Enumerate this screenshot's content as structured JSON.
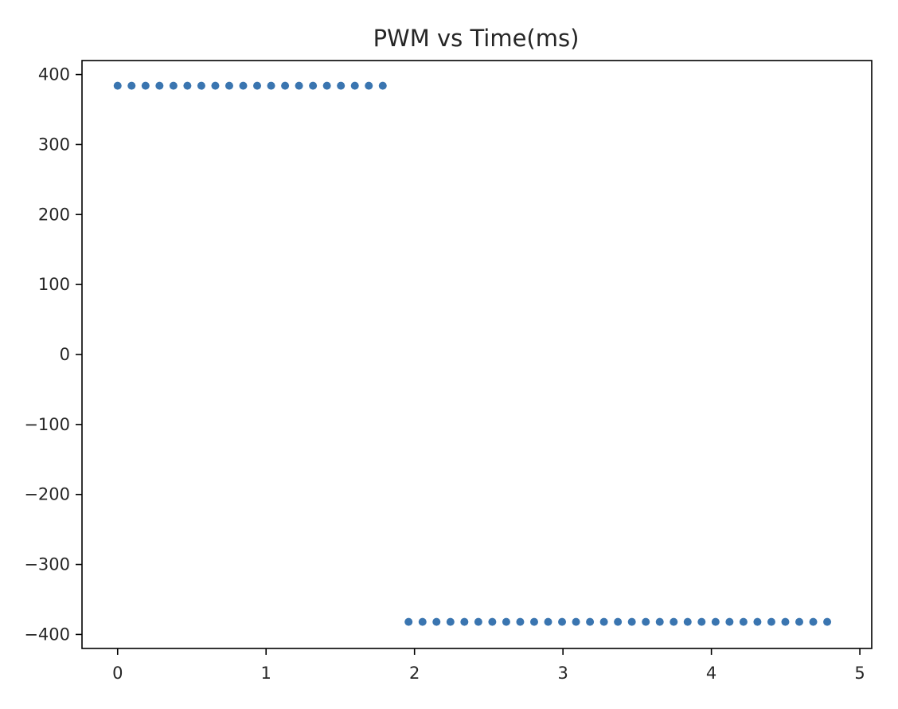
{
  "chart_data": {
    "type": "scatter",
    "title": "PWM vs Time(ms)",
    "xlabel": "",
    "ylabel": "",
    "xlim": [
      -0.24,
      5.08
    ],
    "ylim": [
      -420,
      420
    ],
    "x_ticks": [
      0,
      1,
      2,
      3,
      4,
      5
    ],
    "y_ticks": [
      400,
      300,
      200,
      100,
      0,
      -100,
      -200,
      -300,
      -400
    ],
    "y_tick_labels": [
      "400",
      "300",
      "200",
      "100",
      "0",
      "−100",
      "−200",
      "−300",
      "−400"
    ],
    "grid": false,
    "marker_color": "#3a75b0",
    "series": [
      {
        "x_start": 0.0,
        "x_step": 0.094,
        "count": 20,
        "y": 384
      },
      {
        "x_start": 1.96,
        "x_step": 0.094,
        "count": 31,
        "y": -382
      }
    ]
  }
}
